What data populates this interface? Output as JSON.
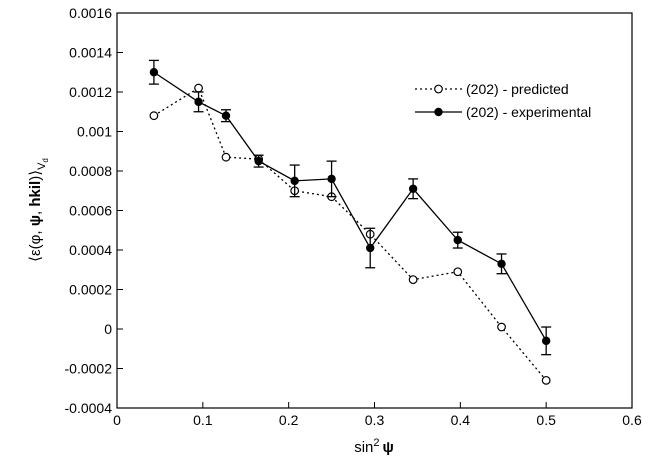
{
  "chart_data": {
    "type": "line",
    "xlabel": {
      "base": "sin",
      "sup": "2",
      "symbol": "ψ"
    },
    "ylabel": {
      "open": "⟨ε(φ, ",
      "psi": "ψ",
      "comma": ", ",
      "hkil": "hkil",
      "close": ")⟩",
      "sub_base": "V",
      "sub_sub": "d"
    },
    "xlim": [
      0,
      0.6
    ],
    "ylim": [
      -0.0004,
      0.0016
    ],
    "x_ticks": [
      "0",
      "0.1",
      "0.2",
      "0.3",
      "0.4",
      "0.5",
      "0.6"
    ],
    "y_ticks": [
      "-0.0004",
      "-0.0002",
      "0",
      "0.0002",
      "0.0004",
      "0.0006",
      "0.0008",
      "0.001",
      "0.0012",
      "0.0014",
      "0.0016"
    ],
    "legend_position": "top-right",
    "series": [
      {
        "name": "(202) - predicted",
        "style": "dotted",
        "marker": "open-circle",
        "color": "#000000",
        "x": [
          0.043,
          0.095,
          0.127,
          0.165,
          0.207,
          0.25,
          0.295,
          0.345,
          0.397,
          0.448,
          0.5
        ],
        "y": [
          0.00108,
          0.00122,
          0.00087,
          0.00086,
          0.0007,
          0.00067,
          0.00048,
          0.00025,
          0.00029,
          1e-05,
          -0.00026
        ]
      },
      {
        "name": "(202) - experimental",
        "style": "solid",
        "marker": "filled-circle",
        "color": "#000000",
        "x": [
          0.043,
          0.095,
          0.127,
          0.165,
          0.207,
          0.25,
          0.295,
          0.345,
          0.397,
          0.448,
          0.5
        ],
        "y": [
          0.0013,
          0.00115,
          0.00108,
          0.00085,
          0.00075,
          0.00076,
          0.00041,
          0.00071,
          0.00045,
          0.00033,
          -6e-05
        ],
        "error": [
          6e-05,
          5e-05,
          3e-05,
          3e-05,
          8e-05,
          9e-05,
          0.0001,
          5e-05,
          4e-05,
          5e-05,
          7e-05
        ]
      }
    ]
  }
}
